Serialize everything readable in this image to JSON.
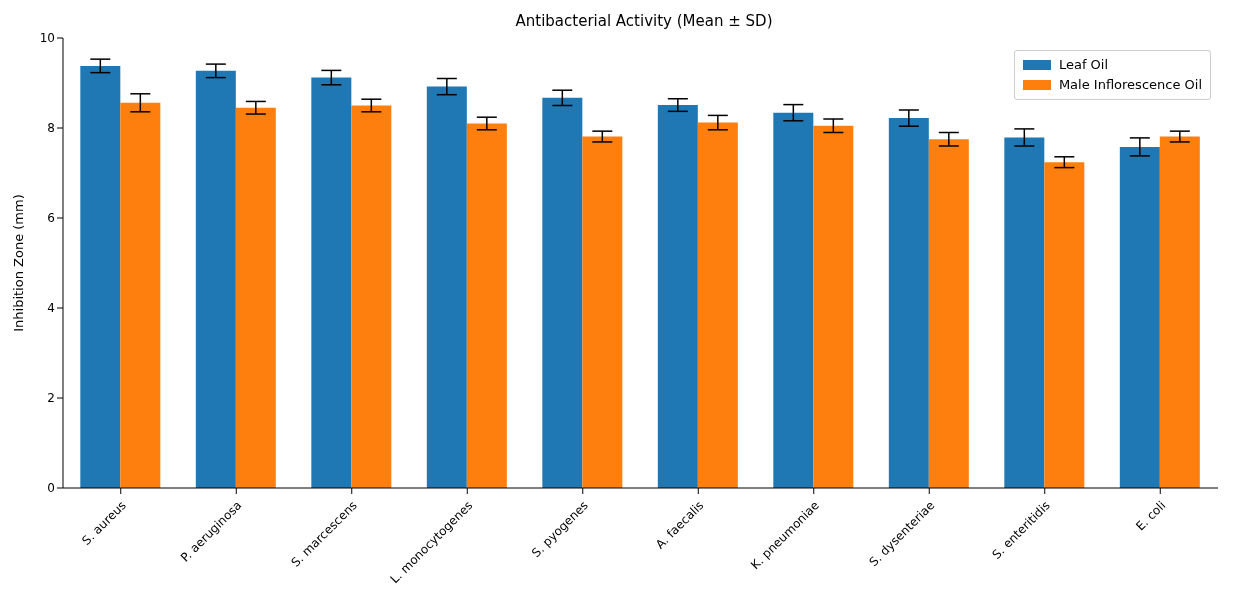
{
  "chart_data": {
    "type": "bar",
    "title": "Antibacterial Activity  (Mean ± SD)",
    "ylabel": "Inhibition Zone (mm)",
    "categories": [
      "S. aureus",
      "P. aeruginosa",
      "S. marcescens",
      "L. monocytogenes",
      "S. pyogenes",
      "A. faecalis",
      "K. pneumoniae",
      "S. dysenteriae",
      "S. enteritidis",
      "E. coli"
    ],
    "series": [
      {
        "name": "Leaf Oil",
        "color": "#1f77b4",
        "values": [
          9.38,
          9.27,
          9.12,
          8.92,
          8.67,
          8.51,
          8.34,
          8.22,
          7.79,
          7.58
        ],
        "errors": [
          0.15,
          0.15,
          0.16,
          0.18,
          0.17,
          0.14,
          0.18,
          0.18,
          0.19,
          0.2
        ]
      },
      {
        "name": "Male Inflorescence Oil",
        "color": "#ff7f0e",
        "values": [
          8.56,
          8.45,
          8.5,
          8.1,
          7.81,
          8.12,
          8.05,
          7.75,
          7.24,
          7.81
        ],
        "errors": [
          0.2,
          0.14,
          0.14,
          0.14,
          0.12,
          0.16,
          0.15,
          0.15,
          0.12,
          0.12
        ]
      }
    ],
    "ylim": [
      0,
      10
    ],
    "yticks": [
      0,
      2,
      4,
      6,
      8,
      10
    ],
    "legend": "top right"
  }
}
